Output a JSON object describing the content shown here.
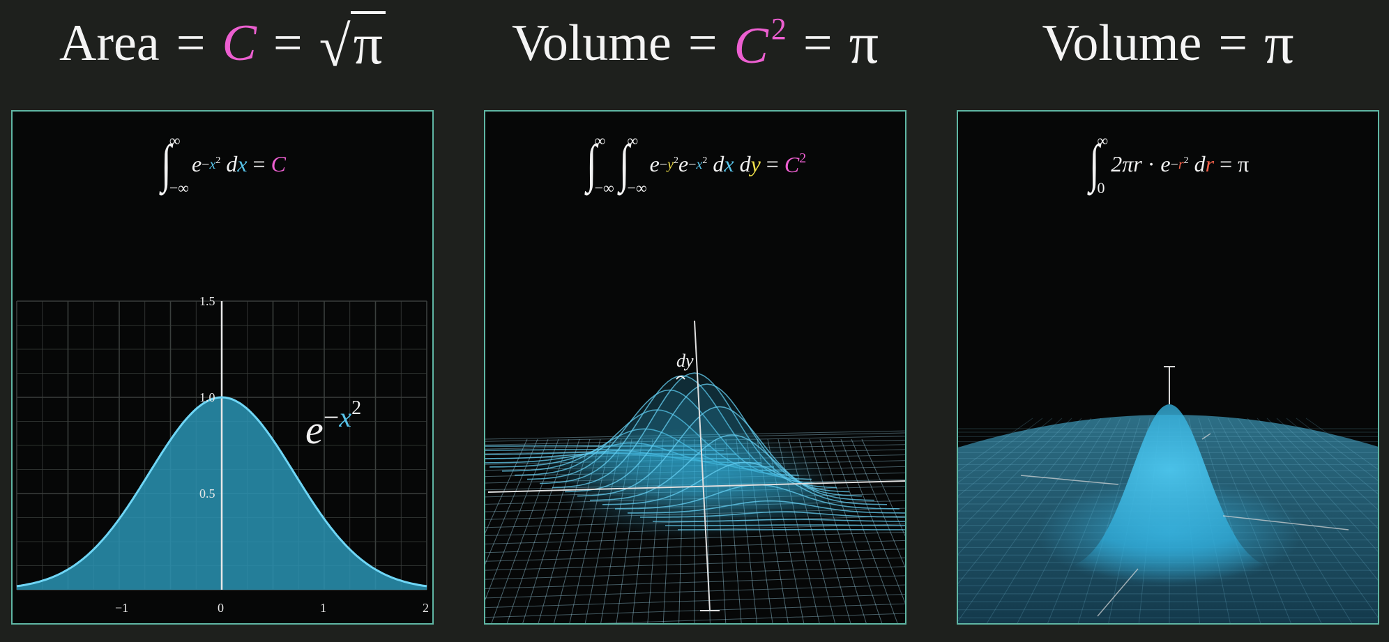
{
  "headings": [
    {
      "label": "Area",
      "eq": "=",
      "const": "C",
      "eq2": "=",
      "sqrt_radicand": "π"
    },
    {
      "label": "Volume",
      "eq": "=",
      "const": "C",
      "power": "2",
      "eq2": "=",
      "result": "π"
    },
    {
      "label": "Volume",
      "eq": "=",
      "result": "π"
    }
  ],
  "formulas": {
    "one": {
      "lower": "−∞",
      "upper": "∞",
      "base": "e",
      "minus": "−",
      "var": "x",
      "exp": "2",
      "d": "d",
      "eq": "=",
      "result": "C"
    },
    "two": {
      "lower": "−∞",
      "upper": "∞",
      "base": "e",
      "minus": "−",
      "var_y": "y",
      "var_x": "x",
      "exp": "2",
      "d": "d",
      "eq": "=",
      "result": "C",
      "result_exp": "2"
    },
    "three": {
      "lower": "0",
      "upper": "∞",
      "factor": "2π",
      "var": "r",
      "dot": "·",
      "base": "e",
      "minus": "−",
      "exp": "2",
      "d": "d",
      "eq": "=",
      "result": "π"
    }
  },
  "chart_data": {
    "type": "area",
    "function": "e^(-x^2)",
    "x_ticks": [
      "−1",
      "0",
      "1",
      "2"
    ],
    "y_ticks": [
      "0.5",
      "1.0",
      "1.5"
    ],
    "curve_label": {
      "base": "e",
      "minus": "−",
      "var": "x",
      "exp": "2"
    },
    "xlim": [
      -2,
      2
    ],
    "ylim": [
      0,
      1.5
    ],
    "grid": true,
    "colors": {
      "fill": "#2a93b3",
      "line": "#6fd6f6",
      "grid": "#3a3f3d",
      "axis": "#e8e8e8"
    }
  },
  "surface_label": "dy",
  "colors": {
    "background": "#1e201d",
    "panel": "#060707",
    "panel_border": "#5fb6a4",
    "pink": "#ec5fd0",
    "blue": "#58c4ea",
    "yellow": "#f2e24a",
    "red": "#f0614a"
  }
}
